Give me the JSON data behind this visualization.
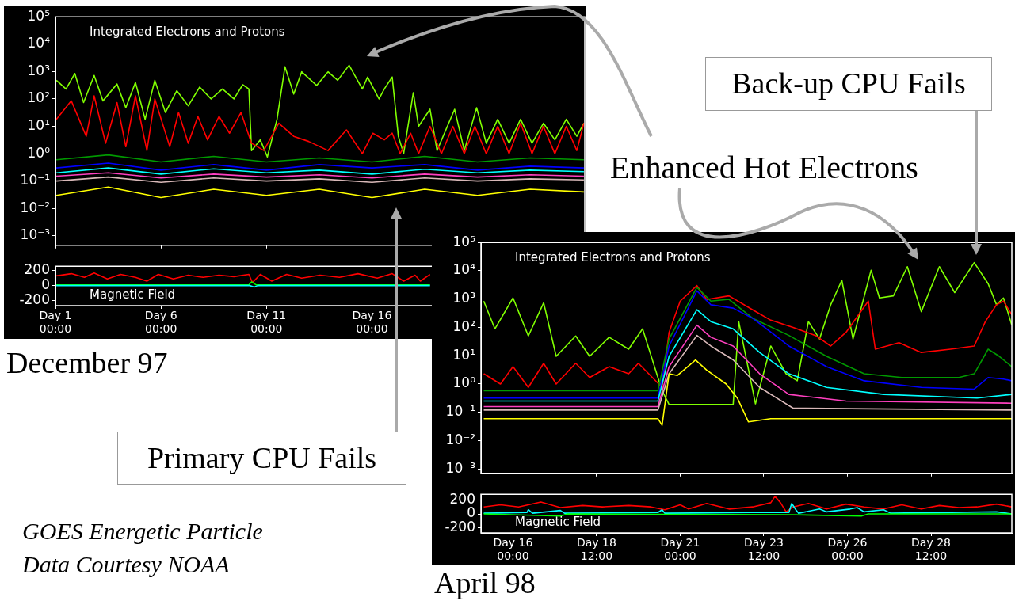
{
  "chart_data": [
    {
      "type": "line",
      "title": "Integrated Electrons and Protons",
      "log": true,
      "grid": false,
      "marker": "none",
      "tick_labels": "y",
      "xlim": [
        "--12-01T00:00",
        "--12-26T02:00"
      ],
      "xticks": [
        {
          "value": "--12-01T00:00",
          "label": null
        },
        {
          "value": "--12-06T00:00",
          "label": null
        },
        {
          "value": "--12-11T00:00",
          "label": null
        },
        {
          "value": "--12-16T00:00",
          "label": null
        }
      ],
      "ylim": [
        0.00045,
        100000
      ],
      "yticks": [
        {
          "value": 0.001,
          "label": "10⁻³"
        },
        {
          "value": 0.01,
          "label": "10⁻²"
        },
        {
          "value": 0.1,
          "label": "10⁻¹"
        },
        {
          "value": 1,
          "label": "10⁰"
        },
        {
          "value": 10,
          "label": "10¹"
        },
        {
          "value": 100,
          "label": "10²"
        },
        {
          "value": 1000,
          "label": "10³"
        },
        {
          "value": 10000,
          "label": "10⁴"
        },
        {
          "value": 100000,
          "label": "10⁵"
        }
      ],
      "annotations": [
        "December 97",
        "Primary CPU Fails",
        "GOES Energetic Particle Data Courtesy NOAA"
      ],
      "series": [
        {
          "color": "#ffff00",
          "x": [
            "--12-01T01:00",
            "--12-03T12:00",
            "--12-06T00:00",
            "--12-08T12:00",
            "--12-11T00:00",
            "--12-13T12:00",
            "--12-16T00:00",
            "--12-18T12:00",
            "--12-21T00:00",
            "--12-23T12:00",
            "--12-26T01:00"
          ],
          "values": [
            0.03,
            0.06,
            0.025,
            0.05,
            0.03,
            0.05,
            0.025,
            0.05,
            0.03,
            0.05,
            0.04
          ]
        },
        {
          "color": "#d8b8b8",
          "x": [
            "--12-01T01:00",
            "--12-03T12:00",
            "--12-06T00:00",
            "--12-08T12:00",
            "--12-11T00:00",
            "--12-13T12:00",
            "--12-16T00:00",
            "--12-18T12:00",
            "--12-21T00:00",
            "--12-23T12:00",
            "--12-26T01:00"
          ],
          "values": [
            0.1,
            0.14,
            0.09,
            0.13,
            0.1,
            0.12,
            0.09,
            0.13,
            0.1,
            0.12,
            0.11
          ]
        },
        {
          "color": "#ff40c0",
          "x": [
            "--12-01T01:00",
            "--12-03T12:00",
            "--12-06T00:00",
            "--12-08T12:00",
            "--12-11T00:00",
            "--12-13T12:00",
            "--12-16T00:00",
            "--12-18T12:00",
            "--12-21T00:00",
            "--12-23T12:00",
            "--12-26T01:00"
          ],
          "values": [
            0.15,
            0.2,
            0.13,
            0.18,
            0.14,
            0.17,
            0.13,
            0.18,
            0.14,
            0.17,
            0.15
          ]
        },
        {
          "color": "#00ffff",
          "x": [
            "--12-01T01:00",
            "--12-03T12:00",
            "--12-06T00:00",
            "--12-08T12:00",
            "--12-11T00:00",
            "--12-13T12:00",
            "--12-16T00:00",
            "--12-18T12:00",
            "--12-21T00:00",
            "--12-23T12:00",
            "--12-26T01:00"
          ],
          "values": [
            0.2,
            0.3,
            0.18,
            0.28,
            0.2,
            0.25,
            0.18,
            0.27,
            0.2,
            0.25,
            0.22
          ]
        },
        {
          "color": "#0000ff",
          "x": [
            "--12-01T01:00",
            "--12-03T12:00",
            "--12-06T00:00",
            "--12-08T12:00",
            "--12-11T00:00",
            "--12-13T12:00",
            "--12-16T00:00",
            "--12-18T12:00",
            "--12-21T00:00",
            "--12-23T12:00",
            "--12-26T01:00"
          ],
          "values": [
            0.3,
            0.45,
            0.25,
            0.4,
            0.25,
            0.4,
            0.3,
            0.4,
            0.25,
            0.35,
            0.3
          ]
        },
        {
          "color": "#009900",
          "x": [
            "--12-01T01:00",
            "--12-03T12:00",
            "--12-06T00:00",
            "--12-08T12:00",
            "--12-11T00:00",
            "--12-13T12:00",
            "--12-16T00:00",
            "--12-18T12:00",
            "--12-21T00:00",
            "--12-23T12:00",
            "--12-26T01:00"
          ],
          "values": [
            0.6,
            0.9,
            0.5,
            0.8,
            0.5,
            0.7,
            0.5,
            0.8,
            0.5,
            0.7,
            0.6
          ]
        },
        {
          "color": "#ff0000",
          "x": [
            "--12-01T01:00",
            "--12-01T18:00",
            "--12-02T11:00",
            "--12-02T20:00",
            "--12-03T09:00",
            "--12-03T22:00",
            "--12-04T08:00",
            "--12-04T19:00",
            "--12-05T08:00",
            "--12-05T17:00",
            "--12-06T10:00",
            "--12-06T20:00",
            "--12-07T07:00",
            "--12-07T18:00",
            "--12-08T05:00",
            "--12-08T18:00",
            "--12-09T06:00",
            "--12-09T19:00",
            "--12-10T07:00",
            "--12-10T21:00",
            "--12-11T14:00",
            "--12-12T07:00",
            "--12-13T00:00",
            "--12-13T22:00",
            "--12-14T19:00",
            "--12-15T13:00",
            "--12-16T01:00",
            "--12-16T14:00",
            "--12-16T23:00",
            "--12-17T08:00",
            "--12-17T20:00",
            "--12-18T05:00",
            "--12-18T18:00",
            "--12-19T07:00",
            "--12-19T20:00",
            "--12-20T09:00",
            "--12-20T21:00",
            "--12-21T10:00",
            "--12-21T23:00",
            "--12-22T12:00",
            "--12-23T01:00",
            "--12-23T14:00",
            "--12-24T03:00",
            "--12-24T16:00",
            "--12-25T05:00",
            "--12-25T17:00",
            "--12-26T01:00"
          ],
          "values": [
            18,
            85,
            4.3,
            130,
            2.4,
            74,
            1.8,
            130,
            1.3,
            100,
            1.8,
            32,
            2.4,
            23,
            3.2,
            23,
            5.6,
            32,
            2.4,
            1.3,
            13,
            4.3,
            2.8,
            1.3,
            7.4,
            1,
            5.6,
            3.2,
            5.6,
            1,
            5.6,
            1,
            10,
            1,
            10,
            1,
            10,
            1,
            10,
            1,
            13,
            1,
            10,
            1,
            10,
            1.3,
            13
          ]
        },
        {
          "color": "#80ff00",
          "x": [
            "--12-01T01:00",
            "--12-01T12:00",
            "--12-01T22:00",
            "--12-02T08:00",
            "--12-02T20:00",
            "--12-03T06:00",
            "--12-03T22:00",
            "--12-04T08:00",
            "--12-04T19:00",
            "--12-05T06:00",
            "--12-05T17:00",
            "--12-06T05:00",
            "--12-06T18:00",
            "--12-07T07:00",
            "--12-07T20:00",
            "--12-08T09:00",
            "--12-08T22:00",
            "--12-09T11:00",
            "--12-09T21:00",
            "--12-10T04:00",
            "--12-10T07:00",
            "--12-10T17:00",
            "--12-11T01:00",
            "--12-11T12:00",
            "--12-11T21:00",
            "--12-12T07:00",
            "--12-12T16:00",
            "--12-13T09:00",
            "--12-13T22:00",
            "--12-14T09:00",
            "--12-14T22:00",
            "--12-15T13:00",
            "--12-15T19:00",
            "--12-16T08:00",
            "--12-16T14:00",
            "--12-16T23:00",
            "--12-17T06:00",
            "--12-17T12:00",
            "--12-17T23:00",
            "--12-18T05:00",
            "--12-18T18:00",
            "--12-19T02:00",
            "--12-19T22:00",
            "--12-20T09:00",
            "--12-20T23:00",
            "--12-21T10:00",
            "--12-21T23:00",
            "--12-22T12:00",
            "--12-23T01:00",
            "--12-23T14:00",
            "--12-24T03:00",
            "--12-24T16:00",
            "--12-25T05:00",
            "--12-25T17:00",
            "--12-26T01:00"
          ],
          "values": [
            480,
            230,
            850,
            74,
            720,
            85,
            350,
            48,
            400,
            18,
            480,
            32,
            200,
            56,
            270,
            100,
            230,
            100,
            330,
            230,
            1.3,
            3.2,
            0.76,
            18,
            1500,
            150,
            980,
            310,
            980,
            480,
            1700,
            230,
            630,
            100,
            230,
            630,
            4.3,
            1,
            170,
            10,
            42,
            1.3,
            42,
            1.3,
            48,
            2.4,
            18,
            2.4,
            18,
            2.4,
            13,
            3.2,
            18,
            4.3,
            13
          ]
        }
      ]
    },
    {
      "type": "line",
      "title": "Magnetic Field",
      "grid": false,
      "marker": "none",
      "xlim": [
        "--12-01T00:00",
        "--12-26T02:00"
      ],
      "xticks": [
        {
          "value": "--12-01T00:00",
          "label": "Day 1 00:00"
        },
        {
          "value": "--12-06T00:00",
          "label": "Day 6 00:00"
        },
        {
          "value": "--12-11T00:00",
          "label": "Day 11 00:00"
        },
        {
          "value": "--12-16T00:00",
          "label": "Day 16 00:00"
        }
      ],
      "ylim": [
        -270,
        260
      ],
      "yticks": [
        -200,
        0,
        200
      ],
      "series": [
        {
          "color": "#00ffff",
          "x": [
            "--12-01T01:00",
            "--12-10T05:00",
            "--12-10T10:00",
            "--12-10T14:00",
            "--12-18T18:00"
          ],
          "values": [
            0,
            0,
            -20,
            0,
            0
          ]
        },
        {
          "color": "#00ff00",
          "x": [
            "--12-01T01:00",
            "--12-10T04:00",
            "--12-10T07:00",
            "--12-10T12:00",
            "--12-18T18:00"
          ],
          "values": [
            10,
            10,
            50,
            10,
            10
          ]
        },
        {
          "color": "#ff0000",
          "x": [
            "--12-01T01:00",
            "--12-01T18:00",
            "--12-02T09:00",
            "--12-02T20:00",
            "--12-03T11:00",
            "--12-04T02:00",
            "--12-04T19:00",
            "--12-05T08:00",
            "--12-05T21:00",
            "--12-06T14:00",
            "--12-07T07:00",
            "--12-08T00:00",
            "--12-08T18:00",
            "--12-09T11:00",
            "--12-10T04:00",
            "--12-10T08:00",
            "--12-10T17:00",
            "--12-11T06:00",
            "--12-11T23:00",
            "--12-12T16:00",
            "--12-13T13:00",
            "--12-14T11:00",
            "--12-15T08:00",
            "--12-16T06:00",
            "--12-16T23:00",
            "--12-17T12:00",
            "--12-18T01:00",
            "--12-18T07:00",
            "--12-18T18:00"
          ],
          "values": [
            130,
            160,
            110,
            170,
            90,
            150,
            110,
            60,
            150,
            90,
            140,
            110,
            140,
            120,
            150,
            40,
            150,
            60,
            150,
            100,
            140,
            110,
            160,
            100,
            160,
            60,
            140,
            60,
            150
          ]
        }
      ]
    },
    {
      "type": "line",
      "title": "Integrated Electrons and Protons",
      "log": true,
      "grid": false,
      "marker": "none",
      "tick_labels": "y",
      "xlim": [
        "--04-15T01:00",
        "--04-30T22:00"
      ],
      "xticks": [
        {
          "value": "--04-16T00:00",
          "label": null
        },
        {
          "value": "--04-18T12:00",
          "label": null
        },
        {
          "value": "--04-21T00:00",
          "label": null
        },
        {
          "value": "--04-23T12:00",
          "label": null
        },
        {
          "value": "--04-26T00:00",
          "label": null
        },
        {
          "value": "--04-28T12:00",
          "label": null
        }
      ],
      "ylim": [
        0.0007,
        100000
      ],
      "yticks": [
        {
          "value": 0.001,
          "label": "10⁻³"
        },
        {
          "value": 0.01,
          "label": "10⁻²"
        },
        {
          "value": 0.1,
          "label": "10⁻¹"
        },
        {
          "value": 1,
          "label": "10⁰"
        },
        {
          "value": 10,
          "label": "10¹"
        },
        {
          "value": 100,
          "label": "10²"
        },
        {
          "value": 1000,
          "label": "10³"
        },
        {
          "value": 10000,
          "label": "10⁴"
        },
        {
          "value": 100000,
          "label": "10⁵"
        }
      ],
      "annotations": [
        "April 98",
        "Back-up CPU Fails",
        "Enhanced Hot Electrons"
      ],
      "series": [
        {
          "color": "#ffff00",
          "x": [
            "--04-15T03:00",
            "--04-20T08:00",
            "--04-20T11:00",
            "--04-20T16:00",
            "--04-20T22:00",
            "--04-21T11:00",
            "--04-21T19:00",
            "--04-22T09:00",
            "--04-22T17:00",
            "--04-23T01:00",
            "--04-23T17:00",
            "--04-30T22:00"
          ],
          "values": [
            0.06,
            0.06,
            0.035,
            2.3,
            2.0,
            7.1,
            3.1,
            1,
            0.32,
            0.046,
            0.06,
            0.06
          ]
        },
        {
          "color": "#d8b8b8",
          "x": [
            "--04-15T03:00",
            "--04-20T08:00",
            "--04-20T16:00",
            "--04-21T12:00",
            "--04-21T22:00",
            "--04-22T14:00",
            "--04-23T09:00",
            "--04-24T09:00",
            "--04-30T22:00"
          ],
          "values": [
            0.12,
            0.12,
            2.3,
            52,
            22,
            7.1,
            0.76,
            0.14,
            0.12
          ]
        },
        {
          "color": "#ff40c0",
          "x": [
            "--04-15T03:00",
            "--04-20T08:00",
            "--04-20T16:00",
            "--04-21T12:00",
            "--04-21T22:00",
            "--04-22T14:00",
            "--04-23T09:00",
            "--04-24T06:00",
            "--04-25T23:00",
            "--04-30T22:00"
          ],
          "values": [
            0.16,
            0.16,
            4.1,
            120,
            45,
            22,
            2.3,
            0.43,
            0.25,
            0.21
          ]
        },
        {
          "color": "#00ffff",
          "x": [
            "--04-15T03:00",
            "--04-20T08:00",
            "--04-20T16:00",
            "--04-21T12:00",
            "--04-21T22:00",
            "--04-22T14:00",
            "--04-23T09:00",
            "--04-24T06:00",
            "--04-25T09:00",
            "--04-27T02:00",
            "--04-29T21:00",
            "--04-30T22:00"
          ],
          "values": [
            0.25,
            0.25,
            9.5,
            420,
            160,
            89,
            13,
            2.3,
            0.76,
            0.43,
            0.32,
            0.43
          ]
        },
        {
          "color": "#0000ff",
          "x": [
            "--04-15T03:00",
            "--04-20T08:00",
            "--04-20T16:00",
            "--04-21T12:00",
            "--04-21T22:00",
            "--04-22T14:00",
            "--04-23T04:00",
            "--04-24T06:00",
            "--04-25T09:00",
            "--04-26T12:00",
            "--04-28T05:00",
            "--04-29T19:00",
            "--04-30T05:00",
            "--04-30T16:00",
            "--04-30T22:00"
          ],
          "values": [
            0.32,
            0.32,
            22,
            1950,
            630,
            480,
            210,
            22,
            4.1,
            1.3,
            0.76,
            0.66,
            1.7,
            1.5,
            1.3
          ]
        },
        {
          "color": "#009900",
          "x": [
            "--04-15T03:00",
            "--04-20T08:00",
            "--04-20T16:00",
            "--04-21T12:00",
            "--04-21T22:00",
            "--04-22T11:00",
            "--04-23T04:00",
            "--04-24T06:00",
            "--04-25T09:00",
            "--04-26T12:00",
            "--04-27T15:00",
            "--04-29T08:00",
            "--04-29T19:00",
            "--04-30T05:00",
            "--04-30T13:00",
            "--04-30T22:00"
          ],
          "values": [
            0.58,
            0.58,
            39,
            2600,
            850,
            980,
            210,
            52,
            9.5,
            2.3,
            1.7,
            1.7,
            2.3,
            17,
            9.5,
            4.1
          ]
        },
        {
          "color": "#ff0000",
          "x": [
            "--04-15T03:00",
            "--04-15T15:00",
            "--04-16T00:00",
            "--04-16T11:00",
            "--04-16T22:00",
            "--04-17T07:00",
            "--04-17T21:00",
            "--04-18T07:00",
            "--04-18T21:00",
            "--04-19T11:00",
            "--04-19T18:00",
            "--04-20T11:00",
            "--04-20T16:00",
            "--04-21T00:00",
            "--04-21T12:00",
            "--04-21T19:00",
            "--04-22T11:00",
            "--04-23T04:00",
            "--04-23T17:00",
            "--04-24T09:00",
            "--04-25T01:00",
            "--04-25T12:00",
            "--04-25T23:00",
            "--04-26T15:00",
            "--04-26T20:00",
            "--04-27T13:00",
            "--04-28T05:00",
            "--04-29T02:00",
            "--04-29T19:00",
            "--04-30T03:00",
            "--04-30T11:00",
            "--04-30T16:00",
            "--04-30T22:00"
          ],
          "values": [
            2.3,
            1,
            4.1,
            0.76,
            5.4,
            1,
            5.4,
            1.7,
            4.1,
            2.3,
            5.4,
            0.76,
            67,
            850,
            3000,
            970,
            1300,
            420,
            180,
            100,
            52,
            22,
            67,
            850,
            17,
            29,
            13,
            17,
            22,
            160,
            630,
            850,
            280
          ]
        },
        {
          "color": "#80ff00",
          "x": [
            "--04-15T03:00",
            "--04-15T11:00",
            "--04-16T00:00",
            "--04-16T11:00",
            "--04-16T22:00",
            "--04-17T07:00",
            "--04-17T21:00",
            "--04-18T07:00",
            "--04-18T21:00",
            "--04-19T11:00",
            "--04-19T21:00",
            "--04-20T11:00",
            "--04-20T16:00",
            "--04-22T14:00",
            "--04-22T18:00",
            "--04-23T06:00",
            "--04-23T17:00",
            "--04-24T04:00",
            "--04-24T12:00",
            "--04-24T20:00",
            "--04-25T04:00",
            "--04-25T12:00",
            "--04-25T20:00",
            "--04-26T04:00",
            "--04-26T17:00",
            "--04-26T23:00",
            "--04-27T09:00",
            "--04-27T19:00",
            "--04-28T05:00",
            "--04-28T18:00",
            "--04-29T05:00",
            "--04-29T19:00",
            "--04-30T05:00",
            "--04-30T11:00",
            "--04-30T16:00",
            "--04-30T22:00"
          ],
          "values": [
            850,
            89,
            1100,
            50,
            740,
            9.5,
            50,
            9.5,
            45,
            17,
            89,
            0.58,
            0.19,
            0.19,
            160,
            0.2,
            22,
            2.3,
            1.3,
            160,
            39,
            630,
            4600,
            39,
            10500,
            1100,
            1300,
            14000,
            360,
            14000,
            1700,
            19500,
            3500,
            630,
            1100,
            120
          ]
        }
      ]
    },
    {
      "type": "line",
      "title": "Magnetic Field",
      "grid": false,
      "marker": "none",
      "xlim": [
        "--04-15T01:00",
        "--04-30T22:00"
      ],
      "xticks": [
        {
          "value": "--04-16T00:00",
          "label": "Day 16 00:00"
        },
        {
          "value": "--04-18T12:00",
          "label": "Day 18 12:00"
        },
        {
          "value": "--04-21T00:00",
          "label": "Day 21 00:00"
        },
        {
          "value": "--04-23T12:00",
          "label": "Day 23 12:00"
        },
        {
          "value": "--04-26T00:00",
          "label": "Day 26 00:00"
        },
        {
          "value": "--04-28T12:00",
          "label": "Day 28 12:00"
        }
      ],
      "ylim": [
        -270,
        280
      ],
      "yticks": [
        -200,
        0,
        200
      ],
      "series": [
        {
          "color": "#00ff00",
          "x": [
            "--04-15T03:00",
            "--04-17T10:00",
            "--04-17T15:00",
            "--04-24T04:00",
            "--04-26T10:00",
            "--04-26T15:00",
            "--04-30T22:00"
          ],
          "values": [
            0,
            -30,
            0,
            -10,
            -30,
            0,
            0
          ]
        },
        {
          "color": "#00ffff",
          "x": [
            "--04-15T03:00",
            "--04-16T10:00",
            "--04-16T11:00",
            "--04-16T14:00",
            "--04-17T10:00",
            "--04-17T13:00",
            "--04-20T08:00",
            "--04-20T11:00",
            "--04-20T13:00",
            "--04-23T04:00",
            "--04-24T06:00",
            "--04-24T08:00",
            "--04-24T11:00",
            "--04-24T13:00",
            "--04-25T04:00",
            "--04-25T09:00",
            "--04-26T02:00",
            "--04-26T07:00",
            "--04-26T12:00",
            "--04-27T02:00",
            "--04-27T07:00",
            "--04-30T11:00",
            "--04-30T22:00"
          ],
          "values": [
            10,
            20,
            60,
            10,
            50,
            10,
            20,
            60,
            10,
            20,
            20,
            150,
            60,
            10,
            70,
            30,
            70,
            90,
            30,
            60,
            10,
            30,
            0
          ]
        },
        {
          "color": "#ff0000",
          "x": [
            "--04-15T03:00",
            "--04-15T15:00",
            "--04-16T04:00",
            "--04-16T20:00",
            "--04-17T10:00",
            "--04-18T02:00",
            "--04-18T16:00",
            "--04-19T11:00",
            "--04-20T03:00",
            "--04-20T13:00",
            "--04-21T00:00",
            "--04-21T06:00",
            "--04-21T19:00",
            "--04-22T11:00",
            "--04-23T04:00",
            "--04-23T17:00",
            "--04-23T20:00",
            "--04-24T00:00",
            "--04-24T04:00",
            "--04-24T09:00",
            "--04-24T20:00",
            "--04-25T09:00",
            "--04-25T23:00",
            "--04-26T12:00",
            "--04-27T02:00",
            "--04-27T15:00",
            "--04-28T05:00",
            "--04-28T18:00",
            "--04-29T08:00",
            "--04-29T21:00",
            "--04-30T11:00",
            "--04-30T22:00"
          ],
          "values": [
            100,
            130,
            100,
            170,
            90,
            120,
            100,
            120,
            100,
            60,
            130,
            70,
            150,
            70,
            100,
            160,
            250,
            160,
            30,
            100,
            150,
            70,
            140,
            100,
            70,
            130,
            70,
            120,
            90,
            100,
            140,
            100
          ]
        }
      ]
    }
  ]
}
